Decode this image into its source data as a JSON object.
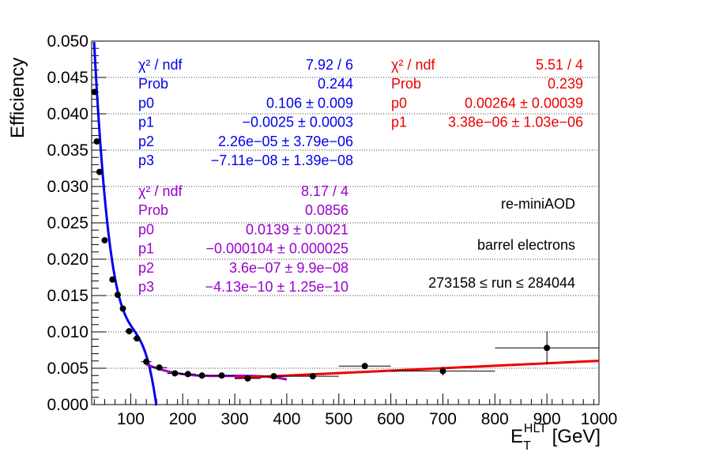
{
  "chart_data": {
    "type": "scatter",
    "title": "",
    "xlabel": {
      "main": "E",
      "sub": "T",
      "sup": "HLT",
      "unit": " [GeV]"
    },
    "ylabel": "Efficiency",
    "xlim": [
      25,
      1000
    ],
    "ylim": [
      0,
      0.05
    ],
    "grid": "horizontal dotted",
    "x_tick_labels": [
      "100",
      "200",
      "300",
      "400",
      "500",
      "600",
      "700",
      "800",
      "900",
      "1000"
    ],
    "y_tick_labels": [
      "0.000",
      "0.005",
      "0.010",
      "0.015",
      "0.020",
      "0.025",
      "0.030",
      "0.035",
      "0.040",
      "0.045",
      "0.050"
    ],
    "x_ticks": [
      100,
      200,
      300,
      400,
      500,
      600,
      700,
      800,
      900,
      1000
    ],
    "y_ticks": [
      0,
      0.005,
      0.01,
      0.015,
      0.02,
      0.025,
      0.03,
      0.035,
      0.04,
      0.045,
      0.05
    ],
    "points": [
      {
        "x": 30,
        "y": 0.043,
        "xerr": 2.5,
        "yerr": 0.0003
      },
      {
        "x": 35,
        "y": 0.0362,
        "xerr": 2.5,
        "yerr": 0.0003
      },
      {
        "x": 40,
        "y": 0.032,
        "xerr": 2.5,
        "yerr": 0.0003
      },
      {
        "x": 50,
        "y": 0.0226,
        "xerr": 5,
        "yerr": 0.0003
      },
      {
        "x": 65,
        "y": 0.0172,
        "xerr": 5,
        "yerr": 0.0003
      },
      {
        "x": 75,
        "y": 0.0151,
        "xerr": 5,
        "yerr": 0.0003
      },
      {
        "x": 85,
        "y": 0.0132,
        "xerr": 5,
        "yerr": 0.0003
      },
      {
        "x": 97,
        "y": 0.0101,
        "xerr": 7.5,
        "yerr": 0.0003
      },
      {
        "x": 112,
        "y": 0.0091,
        "xerr": 7.5,
        "yerr": 0.0003
      },
      {
        "x": 130,
        "y": 0.0059,
        "xerr": 10,
        "yerr": 0.0003
      },
      {
        "x": 155,
        "y": 0.0051,
        "xerr": 15,
        "yerr": 0.0003
      },
      {
        "x": 185,
        "y": 0.0043,
        "xerr": 15,
        "yerr": 0.0003
      },
      {
        "x": 210,
        "y": 0.0042,
        "xerr": 15,
        "yerr": 0.0003
      },
      {
        "x": 237,
        "y": 0.004,
        "xerr": 12.5,
        "yerr": 0.0003
      },
      {
        "x": 275,
        "y": 0.004,
        "xerr": 25,
        "yerr": 0.0003
      },
      {
        "x": 325,
        "y": 0.0036,
        "xerr": 25,
        "yerr": 0.0003
      },
      {
        "x": 375,
        "y": 0.0039,
        "xerr": 25,
        "yerr": 0.0003
      },
      {
        "x": 450,
        "y": 0.0039,
        "xerr": 50,
        "yerr": 0.0003
      },
      {
        "x": 550,
        "y": 0.0053,
        "xerr": 50,
        "yerr": 0.0003
      },
      {
        "x": 700,
        "y": 0.0046,
        "xerr": 100,
        "yerr": 0.0006
      },
      {
        "x": 900,
        "y": 0.0078,
        "xerr": 100,
        "yerr": 0.0023
      }
    ],
    "fits": [
      {
        "color": "#0000ee",
        "func": "pol3",
        "range": [
          25,
          200
        ],
        "params": [
          0.106,
          -0.0025,
          2.26e-05,
          -7.11e-08
        ],
        "stats": [
          {
            "label": "χ² / ndf",
            "value": "7.92 / 6"
          },
          {
            "label": "Prob",
            "value": "0.244"
          },
          {
            "label": "p0",
            "value": "0.106 ± 0.009"
          },
          {
            "label": "p1",
            "value": "−0.0025 ± 0.0003"
          },
          {
            "label": "p2",
            "value": "2.26e−05 ± 3.79e−06"
          },
          {
            "label": "p3",
            "value": "−7.11e−08 ± 1.39e−08"
          }
        ]
      },
      {
        "color": "#9900cc",
        "func": "pol3",
        "range": [
          130,
          400
        ],
        "params": [
          0.0139,
          -0.000104,
          3.6e-07,
          -4.13e-10
        ],
        "stats": [
          {
            "label": "χ² / ndf",
            "value": "8.17 / 4"
          },
          {
            "label": "Prob",
            "value": "0.0856"
          },
          {
            "label": "p0",
            "value": "0.0139 ± 0.0021"
          },
          {
            "label": "p1",
            "value": "−0.000104 ± 0.000025"
          },
          {
            "label": "p2",
            "value": "3.6e−07 ± 9.9e−08"
          },
          {
            "label": "p3",
            "value": "−4.13e−10 ± 1.25e−10"
          }
        ]
      },
      {
        "color": "#ee0000",
        "func": "pol1",
        "range": [
          300,
          1000
        ],
        "params": [
          0.00264,
          3.38e-06
        ],
        "stats": [
          {
            "label": "χ² / ndf",
            "value": "5.51 / 4"
          },
          {
            "label": "Prob",
            "value": "0.239"
          },
          {
            "label": "p0",
            "value": "0.00264 ± 0.00039"
          },
          {
            "label": "p1",
            "value": "3.38e−06 ± 1.03e−06"
          }
        ]
      }
    ],
    "annotations": [
      "re-miniAOD",
      "barrel electrons",
      "273158 ≤ run ≤ 284044"
    ]
  }
}
